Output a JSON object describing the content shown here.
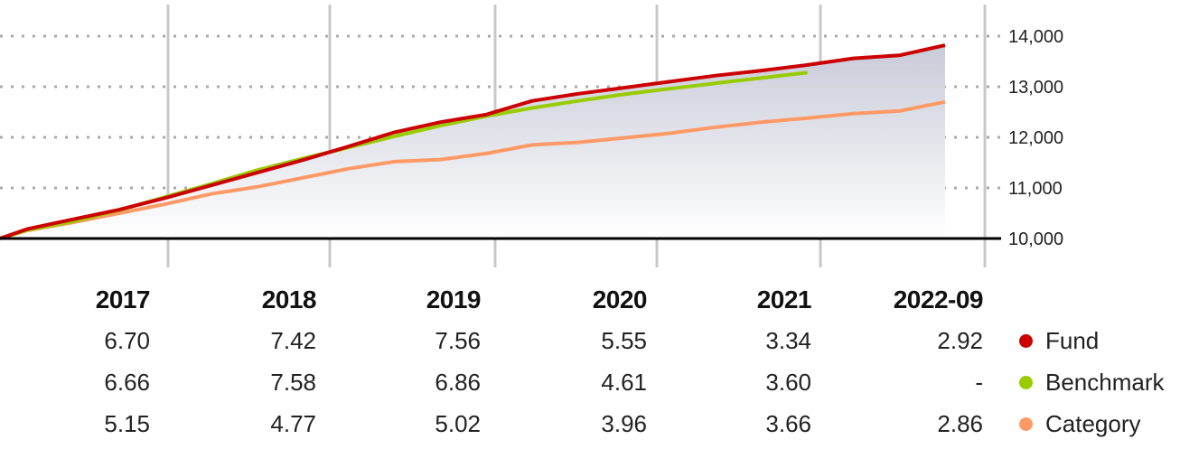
{
  "chart_data": {
    "type": "line",
    "y_ticks": [
      "14,000",
      "13,000",
      "12,000",
      "11,000",
      "10,000"
    ],
    "y_tick_values": [
      14000,
      13000,
      12000,
      11000,
      10000
    ],
    "ylim": [
      10000,
      14000
    ],
    "baseline": 10000,
    "grid": "dotted horizontal",
    "series": [
      {
        "name": "Fund",
        "color": "#cc0000",
        "x": [
          2016.6,
          2016.75,
          2017.0,
          2017.25,
          2017.5,
          2017.75,
          2018.0,
          2018.25,
          2018.5,
          2018.75,
          2019.0,
          2019.25,
          2019.5,
          2019.75,
          2020.0,
          2020.25,
          2020.5,
          2020.75,
          2021.0,
          2021.25,
          2021.5,
          2021.75
        ],
        "y": [
          10000,
          10190,
          10380,
          10570,
          10800,
          11050,
          11300,
          11550,
          11820,
          12100,
          12300,
          12450,
          12720,
          12860,
          12980,
          13100,
          13220,
          13320,
          13430,
          13560,
          13620,
          13820
        ]
      },
      {
        "name": "Benchmark",
        "color": "#99cc00",
        "x": [
          2016.6,
          2016.75,
          2017.0,
          2017.25,
          2017.5,
          2017.75,
          2018.0,
          2018.25,
          2018.5,
          2018.75,
          2019.0,
          2019.25,
          2019.5,
          2019.75,
          2020.0,
          2020.25,
          2020.5,
          2021.0
        ],
        "y": [
          10000,
          10170,
          10340,
          10560,
          10820,
          11080,
          11350,
          11580,
          11800,
          12020,
          12230,
          12420,
          12580,
          12720,
          12850,
          12960,
          13070,
          13280
        ]
      },
      {
        "name": "Category",
        "color": "#ff9966",
        "x": [
          2016.6,
          2016.75,
          2017.0,
          2017.25,
          2017.5,
          2017.75,
          2018.0,
          2018.25,
          2018.5,
          2018.75,
          2019.0,
          2019.25,
          2019.5,
          2019.75,
          2020.0,
          2020.25,
          2020.5,
          2020.75,
          2021.0,
          2021.25,
          2021.5,
          2021.75
        ],
        "y": [
          10000,
          10160,
          10320,
          10500,
          10680,
          10880,
          11020,
          11200,
          11380,
          11520,
          11560,
          11680,
          11850,
          11900,
          11990,
          12080,
          12200,
          12300,
          12380,
          12470,
          12520,
          12700
        ]
      }
    ],
    "table": {
      "years": [
        "2017",
        "2018",
        "2019",
        "2020",
        "2021",
        "2022-09"
      ],
      "rows": [
        {
          "name": "Fund",
          "color": "#cc0000",
          "values": [
            "6.70",
            "7.42",
            "7.56",
            "5.55",
            "3.34",
            "2.92"
          ]
        },
        {
          "name": "Benchmark",
          "color": "#99cc00",
          "values": [
            "6.66",
            "7.58",
            "6.86",
            "4.61",
            "3.60",
            "-"
          ]
        },
        {
          "name": "Category",
          "color": "#ff9966",
          "values": [
            "5.15",
            "4.77",
            "5.02",
            "3.96",
            "3.66",
            "2.86"
          ]
        }
      ]
    }
  }
}
